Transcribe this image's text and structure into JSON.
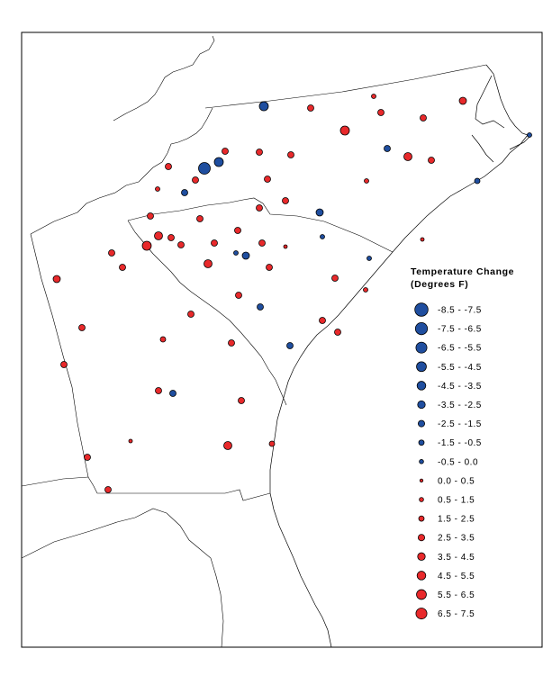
{
  "legend": {
    "title_line1": "Temperature Change",
    "title_line2": "(Degrees F)",
    "items": [
      {
        "label": "-8.5 - -7.5",
        "color": "#1f4e9f",
        "level": 16
      },
      {
        "label": "-7.5 - -6.5",
        "color": "#1f4e9f",
        "level": 15
      },
      {
        "label": "-6.5 - -5.5",
        "color": "#1f4e9f",
        "level": 14
      },
      {
        "label": "-5.5 - -4.5",
        "color": "#1f4e9f",
        "level": 13
      },
      {
        "label": "-4.5 - -3.5",
        "color": "#1f4e9f",
        "level": 12
      },
      {
        "label": "-3.5 - -2.5",
        "color": "#1f4e9f",
        "level": 11
      },
      {
        "label": "-2.5 - -1.5",
        "color": "#1f4e9f",
        "level": 10
      },
      {
        "label": "-1.5 - -0.5",
        "color": "#1f4e9f",
        "level": 9
      },
      {
        "label": "-0.5 - 0.0",
        "color": "#1f4e9f",
        "level": 8
      },
      {
        "label": "0.0 - 0.5",
        "color": "#e8292b",
        "level": 7
      },
      {
        "label": "0.5 - 1.5",
        "color": "#e8292b",
        "level": 8
      },
      {
        "label": "1.5 - 2.5",
        "color": "#e8292b",
        "level": 9
      },
      {
        "label": "2.5 - 3.5",
        "color": "#e8292b",
        "level": 10
      },
      {
        "label": "3.5 - 4.5",
        "color": "#e8292b",
        "level": 11
      },
      {
        "label": "4.5 - 5.5",
        "color": "#e8292b",
        "level": 12
      },
      {
        "label": "5.5 - 6.5",
        "color": "#e8292b",
        "level": 13
      },
      {
        "label": "6.5 - 7.5",
        "color": "#e8292b",
        "level": 14
      }
    ]
  },
  "colors": {
    "warming": "#e8292b",
    "cooling": "#1f4e9f",
    "outline": "#000000"
  }
}
